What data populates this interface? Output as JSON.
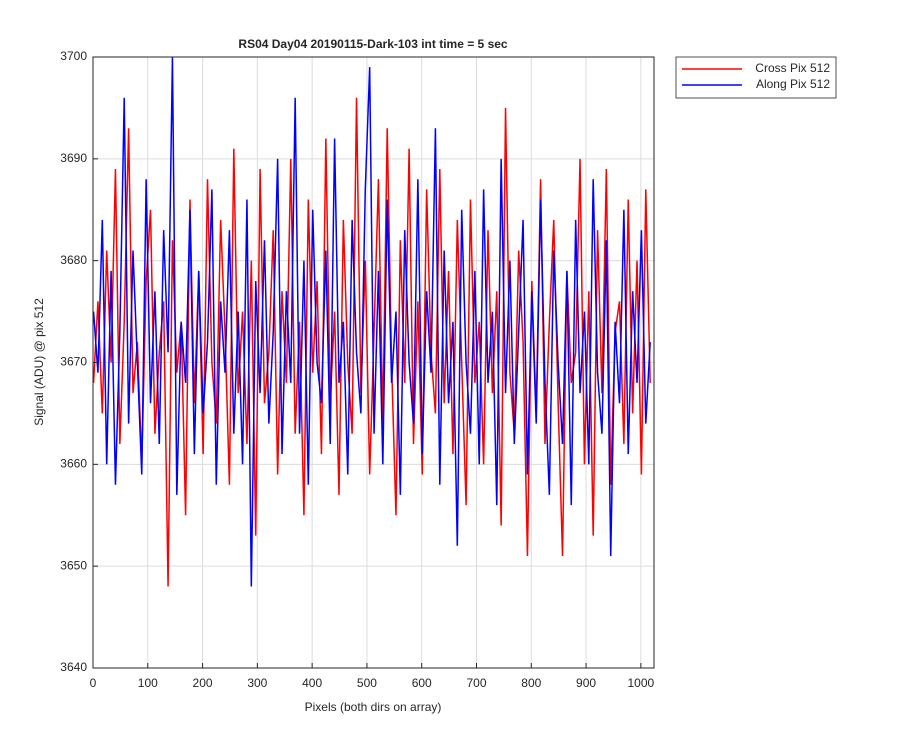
{
  "chart_data": {
    "type": "line",
    "title": "RS04 Day04 20190115-Dark-103 int time = 5 sec",
    "xlabel": "Pixels (both dirs on array)",
    "ylabel": "Signal (ADU) @ pix 512",
    "x": [
      1,
      9,
      17,
      25,
      33,
      41,
      49,
      57,
      65,
      73,
      81,
      89,
      97,
      105,
      113,
      121,
      129,
      137,
      145,
      153,
      161,
      169,
      177,
      185,
      193,
      201,
      209,
      217,
      225,
      233,
      241,
      249,
      257,
      265,
      273,
      281,
      289,
      297,
      305,
      313,
      321,
      329,
      337,
      345,
      353,
      361,
      369,
      377,
      385,
      393,
      401,
      409,
      417,
      425,
      433,
      441,
      449,
      457,
      465,
      473,
      481,
      489,
      497,
      505,
      513,
      521,
      529,
      537,
      545,
      553,
      561,
      569,
      577,
      585,
      593,
      601,
      609,
      617,
      625,
      633,
      641,
      649,
      657,
      665,
      673,
      681,
      689,
      697,
      705,
      713,
      721,
      729,
      737,
      745,
      753,
      761,
      769,
      777,
      785,
      793,
      801,
      809,
      817,
      825,
      833,
      841,
      849,
      857,
      865,
      873,
      881,
      889,
      897,
      905,
      913,
      921,
      929,
      937,
      945,
      953,
      961,
      969,
      977,
      985,
      993,
      1001,
      1009,
      1017
    ],
    "series": [
      {
        "name": "Cross Pix 512",
        "color": "#ff0000",
        "values": [
          3668,
          3676,
          3665,
          3681,
          3670,
          3689,
          3662,
          3674,
          3693,
          3667,
          3672,
          3660,
          3678,
          3685,
          3663,
          3671,
          3676,
          3648,
          3682,
          3669,
          3674,
          3655,
          3686,
          3666,
          3679,
          3661,
          3688,
          3670,
          3664,
          3684,
          3673,
          3658,
          3691,
          3667,
          3675,
          3662,
          3680,
          3653,
          3689,
          3666,
          3671,
          3683,
          3659,
          3677,
          3668,
          3690,
          3663,
          3674,
          3655,
          3686,
          3669,
          3678,
          3661,
          3692,
          3666,
          3675,
          3657,
          3684,
          3670,
          3663,
          3696,
          3667,
          3680,
          3659,
          3673,
          3688,
          3664,
          3693,
          3670,
          3655,
          3682,
          3668,
          3691,
          3662,
          3676,
          3659,
          3687,
          3671,
          3665,
          3689,
          3666,
          3679,
          3661,
          3684,
          3670,
          3656,
          3686,
          3668,
          3674,
          3660,
          3683,
          3667,
          3677,
          3654,
          3695,
          3669,
          3663,
          3681,
          3672,
          3651,
          3678,
          3665,
          3688,
          3662,
          3674,
          3684,
          3666,
          3651,
          3679,
          3668,
          3671,
          3690,
          3660,
          3677,
          3653,
          3683,
          3667,
          3689,
          3658,
          3673,
          3676,
          3662,
          3686,
          3665,
          3680,
          3659,
          3687,
          3668
        ]
      },
      {
        "name": "Along Pix 512",
        "color": "#0000ff",
        "values": [
          3675,
          3669,
          3684,
          3660,
          3679,
          3658,
          3673,
          3696,
          3664,
          3681,
          3670,
          3659,
          3688,
          3666,
          3677,
          3662,
          3683,
          3671,
          3700,
          3657,
          3674,
          3668,
          3685,
          3661,
          3679,
          3665,
          3672,
          3687,
          3658,
          3676,
          3669,
          3683,
          3663,
          3675,
          3660,
          3686,
          3648,
          3678,
          3667,
          3682,
          3664,
          3673,
          3690,
          3661,
          3677,
          3668,
          3696,
          3663,
          3680,
          3658,
          3685,
          3670,
          3666,
          3681,
          3662,
          3692,
          3668,
          3674,
          3659,
          3684,
          3671,
          3665,
          3687,
          3699,
          3663,
          3679,
          3660,
          3686,
          3668,
          3675,
          3657,
          3683,
          3670,
          3664,
          3688,
          3661,
          3677,
          3669,
          3693,
          3658,
          3681,
          3666,
          3674,
          3652,
          3685,
          3670,
          3663,
          3679,
          3660,
          3687,
          3668,
          3675,
          3656,
          3690,
          3667,
          3680,
          3662,
          3673,
          3684,
          3659,
          3677,
          3664,
          3686,
          3668,
          3657,
          3681,
          3670,
          3662,
          3679,
          3656,
          3684,
          3667,
          3675,
          3660,
          3688,
          3669,
          3663,
          3682,
          3651,
          3674,
          3666,
          3685,
          3661,
          3677,
          3668,
          3683,
          3664,
          3672
        ]
      }
    ],
    "xlim": [
      0,
      1024
    ],
    "xticks": [
      0,
      100,
      200,
      300,
      400,
      500,
      600,
      700,
      800,
      900,
      1000
    ],
    "ylim": [
      3640,
      3700
    ],
    "yticks": [
      3640,
      3650,
      3660,
      3670,
      3680,
      3690,
      3700
    ],
    "grid": true,
    "legend": "outside-right"
  }
}
